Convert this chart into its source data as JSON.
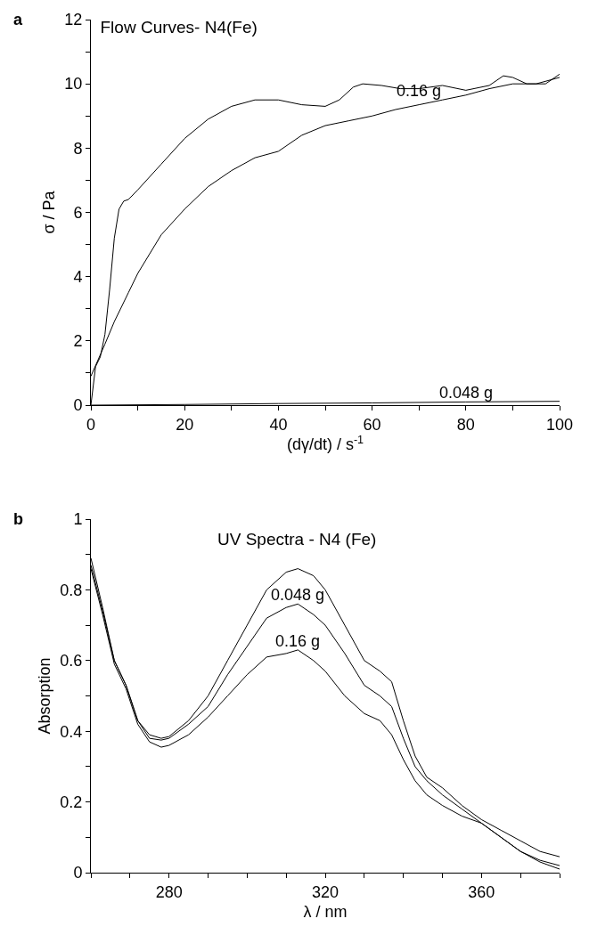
{
  "chart_data": [
    {
      "type": "line",
      "title": "Flow Curves- N4(Fe)",
      "xlabel": "(dγ/dt) / s$^{-1}$",
      "ylabel": "σ / Pa",
      "annotations": [
        "a",
        {
          "text": "0.16 g",
          "x": 70,
          "y": 9.5
        },
        {
          "text": "0.048 g",
          "x": 80,
          "y": 0.1
        }
      ],
      "xlim": [
        0,
        100
      ],
      "ylim": [
        0,
        12
      ],
      "xticks": [
        0,
        {
          "value": 10,
          "label": null
        },
        20,
        {
          "value": 30,
          "label": null
        },
        40,
        {
          "value": 50,
          "label": null
        },
        60,
        {
          "value": 70,
          "label": null
        },
        80,
        {
          "value": 90,
          "label": null
        },
        100
      ],
      "yticks": [
        0,
        {
          "value": 1,
          "label": null
        },
        2,
        {
          "value": 3,
          "label": null
        },
        4,
        {
          "value": 5,
          "label": null
        },
        6,
        {
          "value": 7,
          "label": null
        },
        8,
        {
          "value": 9,
          "label": null
        },
        10,
        {
          "value": 11,
          "label": null
        },
        12
      ],
      "grid": false,
      "line_style": "solid",
      "marker": "none",
      "series": [
        {
          "color": "#000000",
          "x": [
            0,
            1,
            2,
            3,
            4,
            5,
            6,
            7,
            8,
            10,
            15,
            20,
            25,
            30,
            35,
            40,
            45,
            50,
            53,
            56,
            58,
            62,
            66,
            70,
            75,
            80,
            85,
            88,
            90,
            93,
            97,
            100
          ],
          "values": [
            0,
            1.2,
            1.5,
            2.2,
            3.6,
            5.2,
            6.1,
            6.35,
            6.4,
            6.7,
            7.5,
            8.3,
            8.9,
            9.3,
            9.5,
            9.5,
            9.35,
            9.3,
            9.5,
            9.9,
            10.0,
            9.95,
            9.85,
            9.85,
            9.95,
            9.8,
            9.95,
            10.25,
            10.2,
            10.0,
            10.0,
            10.3
          ]
        },
        {
          "color": "#000000",
          "x": [
            0,
            3,
            5,
            8,
            10,
            15,
            20,
            25,
            30,
            35,
            40,
            45,
            50,
            55,
            60,
            65,
            70,
            75,
            80,
            85,
            90,
            95,
            100
          ],
          "values": [
            0.9,
            1.9,
            2.6,
            3.5,
            4.1,
            5.3,
            6.1,
            6.8,
            7.3,
            7.7,
            7.9,
            8.4,
            8.7,
            8.85,
            9.0,
            9.2,
            9.35,
            9.5,
            9.65,
            9.85,
            10.0,
            10.0,
            10.2
          ]
        },
        {
          "color": "#000000",
          "x": [
            0,
            20,
            40,
            60,
            80,
            100
          ],
          "values": [
            0,
            0.02,
            0.05,
            0.07,
            0.1,
            0.12
          ]
        }
      ]
    },
    {
      "type": "line",
      "title": "UV Spectra - N4 (Fe)",
      "xlabel": "λ / nm",
      "ylabel": "Absorption",
      "annotations": [
        "b",
        {
          "text": "0.048 g",
          "x": 313,
          "y": 0.76
        },
        {
          "text": "0.16 g",
          "x": 313,
          "y": 0.63
        }
      ],
      "xlim": [
        260,
        380
      ],
      "ylim": [
        0,
        1
      ],
      "xticks": [
        {
          "value": 260,
          "label": null
        },
        {
          "value": 270,
          "label": null
        },
        280,
        {
          "value": 290,
          "label": null
        },
        {
          "value": 300,
          "label": null
        },
        {
          "value": 310,
          "label": null
        },
        320,
        {
          "value": 330,
          "label": null
        },
        {
          "value": 340,
          "label": null
        },
        {
          "value": 350,
          "label": null
        },
        360,
        {
          "value": 370,
          "label": null
        },
        {
          "value": 380,
          "label": null
        }
      ],
      "yticks": [
        0,
        {
          "value": 0.1,
          "label": null
        },
        0.2,
        {
          "value": 0.3,
          "label": null
        },
        0.4,
        {
          "value": 0.5,
          "label": null
        },
        0.6,
        {
          "value": 0.7,
          "label": null
        },
        0.8,
        {
          "value": 0.9,
          "label": null
        },
        1
      ],
      "grid": false,
      "line_style": "solid",
      "marker": "none",
      "x": [
        260,
        263,
        266,
        269,
        272,
        275,
        278,
        280,
        285,
        290,
        295,
        300,
        305,
        310,
        313,
        317,
        320,
        325,
        330,
        334,
        337,
        340,
        343,
        346,
        350,
        355,
        360,
        365,
        370,
        375,
        380
      ],
      "series": [
        {
          "color": "#000000",
          "values": [
            0.89,
            0.75,
            0.6,
            0.53,
            0.43,
            0.39,
            0.38,
            0.385,
            0.43,
            0.5,
            0.6,
            0.7,
            0.8,
            0.85,
            0.86,
            0.84,
            0.8,
            0.7,
            0.6,
            0.57,
            0.54,
            0.43,
            0.33,
            0.27,
            0.24,
            0.19,
            0.15,
            0.12,
            0.09,
            0.06,
            0.045
          ]
        },
        {
          "color": "#000000",
          "values": [
            0.87,
            0.74,
            0.6,
            0.53,
            0.43,
            0.38,
            0.375,
            0.38,
            0.42,
            0.47,
            0.56,
            0.64,
            0.72,
            0.75,
            0.76,
            0.73,
            0.7,
            0.62,
            0.53,
            0.5,
            0.47,
            0.38,
            0.3,
            0.26,
            0.22,
            0.18,
            0.14,
            0.1,
            0.06,
            0.035,
            0.02
          ]
        },
        {
          "color": "#000000",
          "values": [
            0.86,
            0.73,
            0.59,
            0.52,
            0.42,
            0.37,
            0.355,
            0.36,
            0.39,
            0.44,
            0.5,
            0.56,
            0.61,
            0.62,
            0.63,
            0.6,
            0.57,
            0.5,
            0.45,
            0.43,
            0.39,
            0.32,
            0.26,
            0.22,
            0.19,
            0.16,
            0.14,
            0.1,
            0.06,
            0.03,
            0.01
          ]
        }
      ]
    }
  ]
}
